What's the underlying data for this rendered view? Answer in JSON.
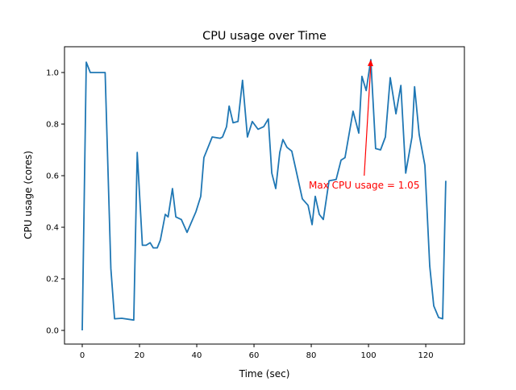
{
  "chart_data": {
    "type": "line",
    "title": "CPU usage over Time",
    "xlabel": "Time (sec)",
    "ylabel": "CPU usage (cores)",
    "xlim": [
      -6.2,
      133.5
    ],
    "ylim": [
      -0.053,
      1.1
    ],
    "xticks": [
      0,
      20,
      40,
      60,
      80,
      100,
      120
    ],
    "yticks": [
      0.0,
      0.2,
      0.4,
      0.6,
      0.8,
      1.0
    ],
    "xtick_labels": [
      "0",
      "20",
      "40",
      "60",
      "80",
      "100",
      "120"
    ],
    "ytick_labels": [
      "0.0",
      "0.2",
      "0.4",
      "0.6",
      "0.8",
      "1.0"
    ],
    "grid": false,
    "line_color": "#1f77b4",
    "series": [
      {
        "x": [
          0,
          1.4,
          2.8,
          8,
          10,
          11.3,
          13.8,
          18,
          19.2,
          21,
          22.3,
          23.7,
          24.8,
          26.2,
          27.3,
          29,
          30,
          31.5,
          32.7,
          34.6,
          36.6,
          39.7,
          41.4,
          42.5,
          45.4,
          48.2,
          49,
          50.4,
          51.3,
          52.7,
          54.4,
          56,
          57.7,
          59.4,
          61.4,
          63.4,
          65,
          66.2,
          67.6,
          69,
          70.1,
          71.5,
          73.2,
          74.6,
          76.9,
          78.9,
          80.3,
          81.4,
          82.8,
          84.2,
          86.2,
          88.7,
          90.4,
          91.8,
          94.6,
          96.6,
          97.7,
          99.2,
          100.8,
          102.5,
          104.2,
          105.9,
          107.6,
          109.6,
          111.3,
          113,
          115.2,
          116.1,
          117.7,
          119.7,
          121.4,
          122.8,
          124.5,
          125.9,
          127
        ],
        "y": [
          0,
          1.04,
          1.0,
          1.0,
          0.24,
          0.045,
          0.047,
          0.04,
          0.69,
          0.33,
          0.33,
          0.34,
          0.32,
          0.32,
          0.35,
          0.45,
          0.44,
          0.55,
          0.44,
          0.43,
          0.38,
          0.46,
          0.52,
          0.67,
          0.75,
          0.745,
          0.75,
          0.79,
          0.87,
          0.805,
          0.81,
          0.97,
          0.75,
          0.81,
          0.78,
          0.79,
          0.82,
          0.61,
          0.55,
          0.69,
          0.74,
          0.71,
          0.695,
          0.625,
          0.51,
          0.485,
          0.41,
          0.52,
          0.45,
          0.43,
          0.58,
          0.585,
          0.66,
          0.67,
          0.85,
          0.765,
          0.985,
          0.93,
          1.05,
          0.705,
          0.7,
          0.75,
          0.98,
          0.84,
          0.95,
          0.61,
          0.75,
          0.945,
          0.76,
          0.64,
          0.25,
          0.095,
          0.05,
          0.045,
          0.58
        ]
      }
    ],
    "annotation": {
      "text": "Max CPU usage = 1.05",
      "xy": [
        100.8,
        1.05
      ],
      "xytext": [
        98.5,
        0.6
      ],
      "color": "#ff0000"
    }
  }
}
